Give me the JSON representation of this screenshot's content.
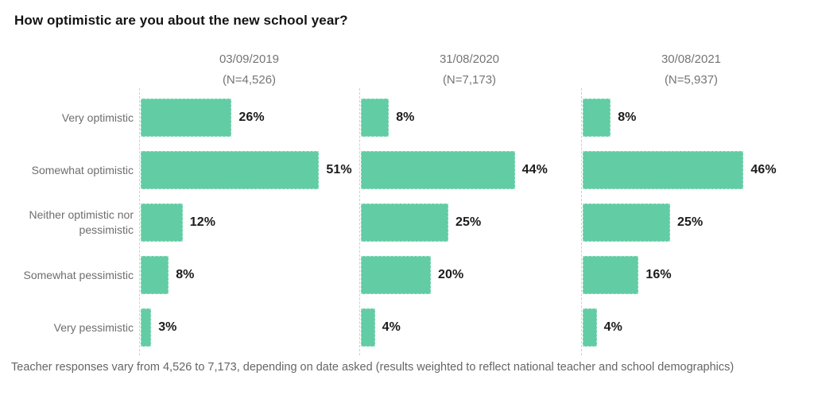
{
  "title": "How optimistic are you about the new school year?",
  "footnote": "Teacher responses vary from  4,526 to 7,173, depending on date asked (results weighted to reflect national teacher and school demographics)",
  "colors": {
    "bar": "#62cda4",
    "value_label": "#1c1c1c",
    "category_label": "#6e6e6e",
    "panel_header": "#757575"
  },
  "chart_data": {
    "type": "bar",
    "orientation": "horizontal",
    "unit": "%",
    "title": "How optimistic are you about the new school year?",
    "xlabel": "",
    "ylabel": "",
    "xlim": [
      0,
      55
    ],
    "grid": false,
    "legend_position": "none",
    "categories": [
      "Very optimistic",
      "Somewhat optimistic",
      "Neither optimistic nor pessimistic",
      "Somewhat pessimistic",
      "Very pessimistic"
    ],
    "series": [
      {
        "name": "03/09/2019",
        "n_label": "(N=4,526)",
        "values": [
          26,
          51,
          12,
          8,
          3
        ]
      },
      {
        "name": "31/08/2020",
        "n_label": "(N=7,173)",
        "values": [
          8,
          44,
          25,
          20,
          4
        ]
      },
      {
        "name": "30/08/2021",
        "n_label": "(N=5,937)",
        "values": [
          8,
          46,
          25,
          16,
          4
        ]
      }
    ]
  }
}
